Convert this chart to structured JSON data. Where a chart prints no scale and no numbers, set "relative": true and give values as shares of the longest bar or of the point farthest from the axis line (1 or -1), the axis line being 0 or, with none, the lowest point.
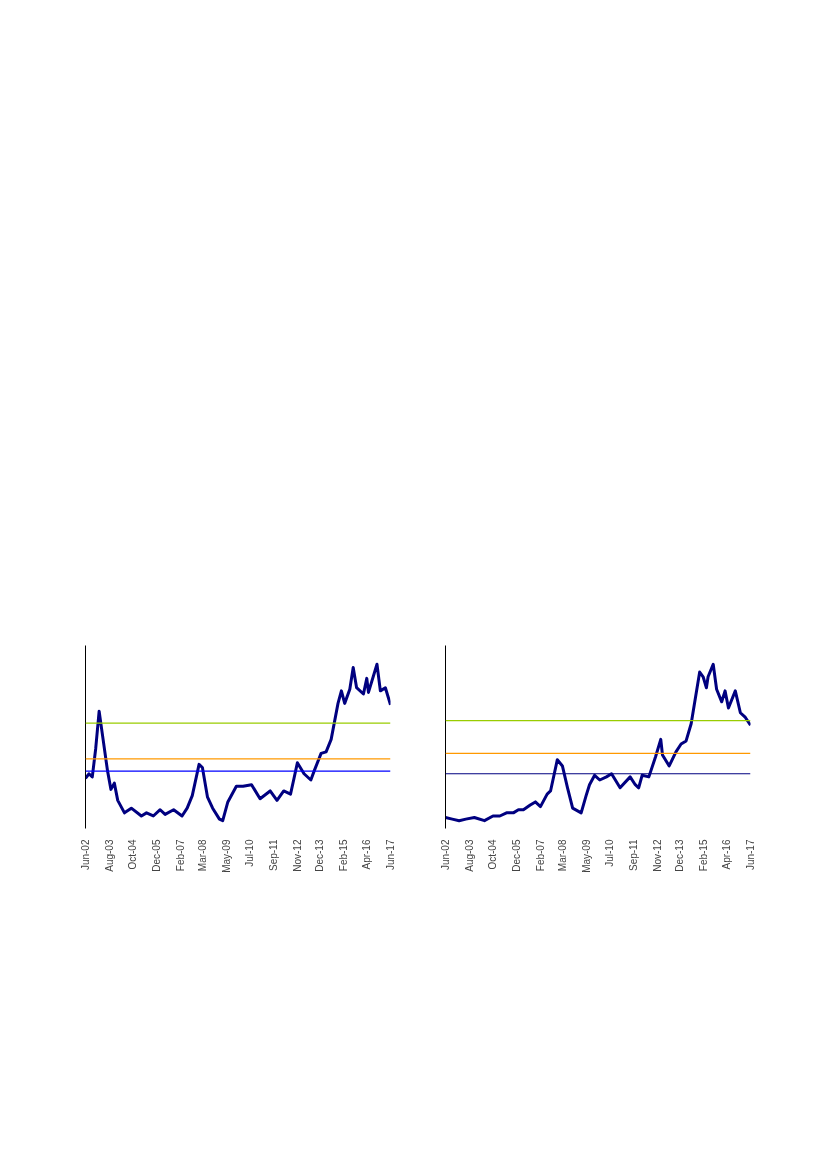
{
  "chart_data": [
    {
      "type": "line",
      "relative": true,
      "line_style": "solid",
      "marker": "none",
      "grid": false,
      "xlim": [
        "2002-06",
        "2017-06"
      ],
      "xticks": [
        {
          "value": "2002-06",
          "label": "Jun-02"
        },
        {
          "value": "2003-08",
          "label": "Aug-03"
        },
        {
          "value": "2004-10",
          "label": "Oct-04"
        },
        {
          "value": "2005-12",
          "label": "Dec-05"
        },
        {
          "value": "2007-02",
          "label": "Feb-07"
        },
        {
          "value": "2008-03",
          "label": "Mar-08"
        },
        {
          "value": "2009-05",
          "label": "May-09"
        },
        {
          "value": "2010-07",
          "label": "Jul-10"
        },
        {
          "value": "2011-09",
          "label": "Sep-11"
        },
        {
          "value": "2012-11",
          "label": "Nov-12"
        },
        {
          "value": "2013-12",
          "label": "Dec-13"
        },
        {
          "value": "2015-02",
          "label": "Feb-15"
        },
        {
          "value": "2016-04",
          "label": "Apr-16"
        },
        {
          "value": "2017-06",
          "label": "Jun-17"
        }
      ],
      "x": [
        "2002-06",
        "2002-08",
        "2002-10",
        "2002-12",
        "2003-02",
        "2003-04",
        "2003-07",
        "2003-09",
        "2003-11",
        "2004-01",
        "2004-05",
        "2004-09",
        "2005-03",
        "2005-06",
        "2005-10",
        "2006-02",
        "2006-05",
        "2006-10",
        "2007-03",
        "2007-06",
        "2007-09",
        "2008-01",
        "2008-03",
        "2008-06",
        "2008-09",
        "2009-01",
        "2009-03",
        "2009-06",
        "2009-11",
        "2010-03",
        "2010-08",
        "2011-01",
        "2011-07",
        "2011-11",
        "2012-03",
        "2012-07",
        "2012-09",
        "2012-11",
        "2013-03",
        "2013-07",
        "2013-09",
        "2014-01",
        "2014-04",
        "2014-07",
        "2014-11",
        "2015-01",
        "2015-03",
        "2015-06",
        "2015-08",
        "2015-10",
        "2016-02",
        "2016-04",
        "2016-05",
        "2016-10",
        "2016-12",
        "2017-03",
        "2017-06"
      ],
      "series": [
        {
          "color": "#000080",
          "values": [
            0.27,
            0.3,
            0.28,
            0.46,
            0.7,
            0.55,
            0.32,
            0.2,
            0.24,
            0.13,
            0.05,
            0.08,
            0.03,
            0.05,
            0.03,
            0.07,
            0.04,
            0.07,
            0.03,
            0.08,
            0.16,
            0.36,
            0.34,
            0.15,
            0.08,
            0.01,
            0,
            0.12,
            0.22,
            0.22,
            0.23,
            0.14,
            0.19,
            0.13,
            0.19,
            0.17,
            0.27,
            0.37,
            0.3,
            0.26,
            0.32,
            0.43,
            0.44,
            0.52,
            0.75,
            0.83,
            0.75,
            0.84,
            0.98,
            0.85,
            0.81,
            0.91,
            0.82,
            1.0,
            0.83,
            0.85,
            0.74
          ]
        }
      ],
      "ref_lines": [
        {
          "axis": "y",
          "value": 0.624,
          "color": "#99cc00"
        },
        {
          "axis": "y",
          "value": 0.395,
          "color": "#ff9900"
        },
        {
          "axis": "y",
          "value": 0.317,
          "color": "#0000ff"
        }
      ]
    },
    {
      "type": "line",
      "relative": true,
      "line_style": "solid",
      "marker": "none",
      "grid": false,
      "xlim": [
        "2002-06",
        "2017-06"
      ],
      "xticks": [
        {
          "value": "2002-06",
          "label": "Jun-02"
        },
        {
          "value": "2003-08",
          "label": "Aug-03"
        },
        {
          "value": "2004-10",
          "label": "Oct-04"
        },
        {
          "value": "2005-12",
          "label": "Dec-05"
        },
        {
          "value": "2007-02",
          "label": "Feb-07"
        },
        {
          "value": "2008-03",
          "label": "Mar-08"
        },
        {
          "value": "2009-05",
          "label": "May-09"
        },
        {
          "value": "2010-07",
          "label": "Jul-10"
        },
        {
          "value": "2011-09",
          "label": "Sep-11"
        },
        {
          "value": "2012-11",
          "label": "Nov-12"
        },
        {
          "value": "2013-12",
          "label": "Dec-13"
        },
        {
          "value": "2015-02",
          "label": "Feb-15"
        },
        {
          "value": "2016-04",
          "label": "Apr-16"
        },
        {
          "value": "2017-06",
          "label": "Jun-17"
        }
      ],
      "x": [
        "2002-06",
        "2002-10",
        "2003-02",
        "2003-06",
        "2003-11",
        "2004-05",
        "2004-10",
        "2005-02",
        "2005-06",
        "2005-10",
        "2006-01",
        "2006-04",
        "2006-08",
        "2006-11",
        "2007-02",
        "2007-06",
        "2007-08",
        "2007-12",
        "2008-03",
        "2008-06",
        "2008-09",
        "2009-02",
        "2009-05",
        "2009-07",
        "2009-10",
        "2010-01",
        "2010-05",
        "2010-08",
        "2011-01",
        "2011-07",
        "2011-10",
        "2011-12",
        "2012-02",
        "2012-06",
        "2012-10",
        "2013-01",
        "2013-02",
        "2013-06",
        "2013-10",
        "2014-01",
        "2014-04",
        "2014-07",
        "2014-12",
        "2015-02",
        "2015-04",
        "2015-05",
        "2015-08",
        "2015-10",
        "2016-01",
        "2016-03",
        "2016-05",
        "2016-09",
        "2016-12",
        "2017-03",
        "2017-06"
      ],
      "series": [
        {
          "color": "#000080",
          "values": [
            0.02,
            0.01,
            0.0,
            0.01,
            0.02,
            0,
            0.03,
            0.03,
            0.05,
            0.05,
            0.07,
            0.07,
            0.1,
            0.12,
            0.09,
            0.17,
            0.19,
            0.39,
            0.35,
            0.21,
            0.08,
            0.05,
            0.16,
            0.23,
            0.29,
            0.26,
            0.28,
            0.3,
            0.21,
            0.28,
            0.23,
            0.21,
            0.29,
            0.28,
            0.41,
            0.52,
            0.42,
            0.35,
            0.44,
            0.49,
            0.51,
            0.62,
            0.95,
            0.92,
            0.85,
            0.92,
            1.0,
            0.84,
            0.76,
            0.83,
            0.72,
            0.83,
            0.69,
            0.66,
            0.61
          ]
        }
      ],
      "ref_lines": [
        {
          "axis": "y",
          "value": 0.64,
          "color": "#99cc00"
        },
        {
          "axis": "y",
          "value": 0.43,
          "color": "#ff9900"
        },
        {
          "axis": "y",
          "value": 0.3,
          "color": "#000080"
        }
      ]
    }
  ]
}
